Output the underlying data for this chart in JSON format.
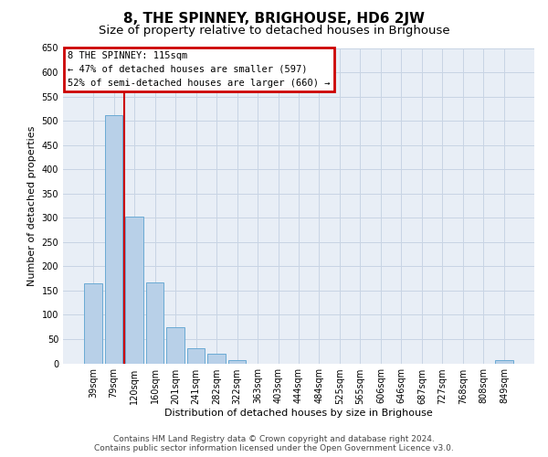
{
  "title": "8, THE SPINNEY, BRIGHOUSE, HD6 2JW",
  "subtitle": "Size of property relative to detached houses in Brighouse",
  "xlabel": "Distribution of detached houses by size in Brighouse",
  "ylabel": "Number of detached properties",
  "categories": [
    "39sqm",
    "79sqm",
    "120sqm",
    "160sqm",
    "201sqm",
    "241sqm",
    "282sqm",
    "322sqm",
    "363sqm",
    "403sqm",
    "444sqm",
    "484sqm",
    "525sqm",
    "565sqm",
    "606sqm",
    "646sqm",
    "687sqm",
    "727sqm",
    "768sqm",
    "808sqm",
    "849sqm"
  ],
  "values": [
    165,
    512,
    303,
    167,
    75,
    31,
    19,
    7,
    0,
    0,
    0,
    0,
    0,
    0,
    0,
    0,
    0,
    0,
    0,
    0,
    7
  ],
  "bar_color": "#b8d0e8",
  "bar_edge_color": "#6aaad4",
  "grid_color": "#c8d4e4",
  "background_color": "#e8eef6",
  "vline_color": "#cc0000",
  "vline_x_index": 1.5,
  "annotation_text": "8 THE SPINNEY: 115sqm\n← 47% of detached houses are smaller (597)\n52% of semi-detached houses are larger (660) →",
  "annotation_box_color": "#cc0000",
  "ylim": [
    0,
    650
  ],
  "yticks": [
    0,
    50,
    100,
    150,
    200,
    250,
    300,
    350,
    400,
    450,
    500,
    550,
    600,
    650
  ],
  "footer_line1": "Contains HM Land Registry data © Crown copyright and database right 2024.",
  "footer_line2": "Contains public sector information licensed under the Open Government Licence v3.0.",
  "title_fontsize": 11,
  "subtitle_fontsize": 9.5,
  "annotation_fontsize": 7.5,
  "axis_label_fontsize": 8,
  "tick_fontsize": 7,
  "footer_fontsize": 6.5
}
